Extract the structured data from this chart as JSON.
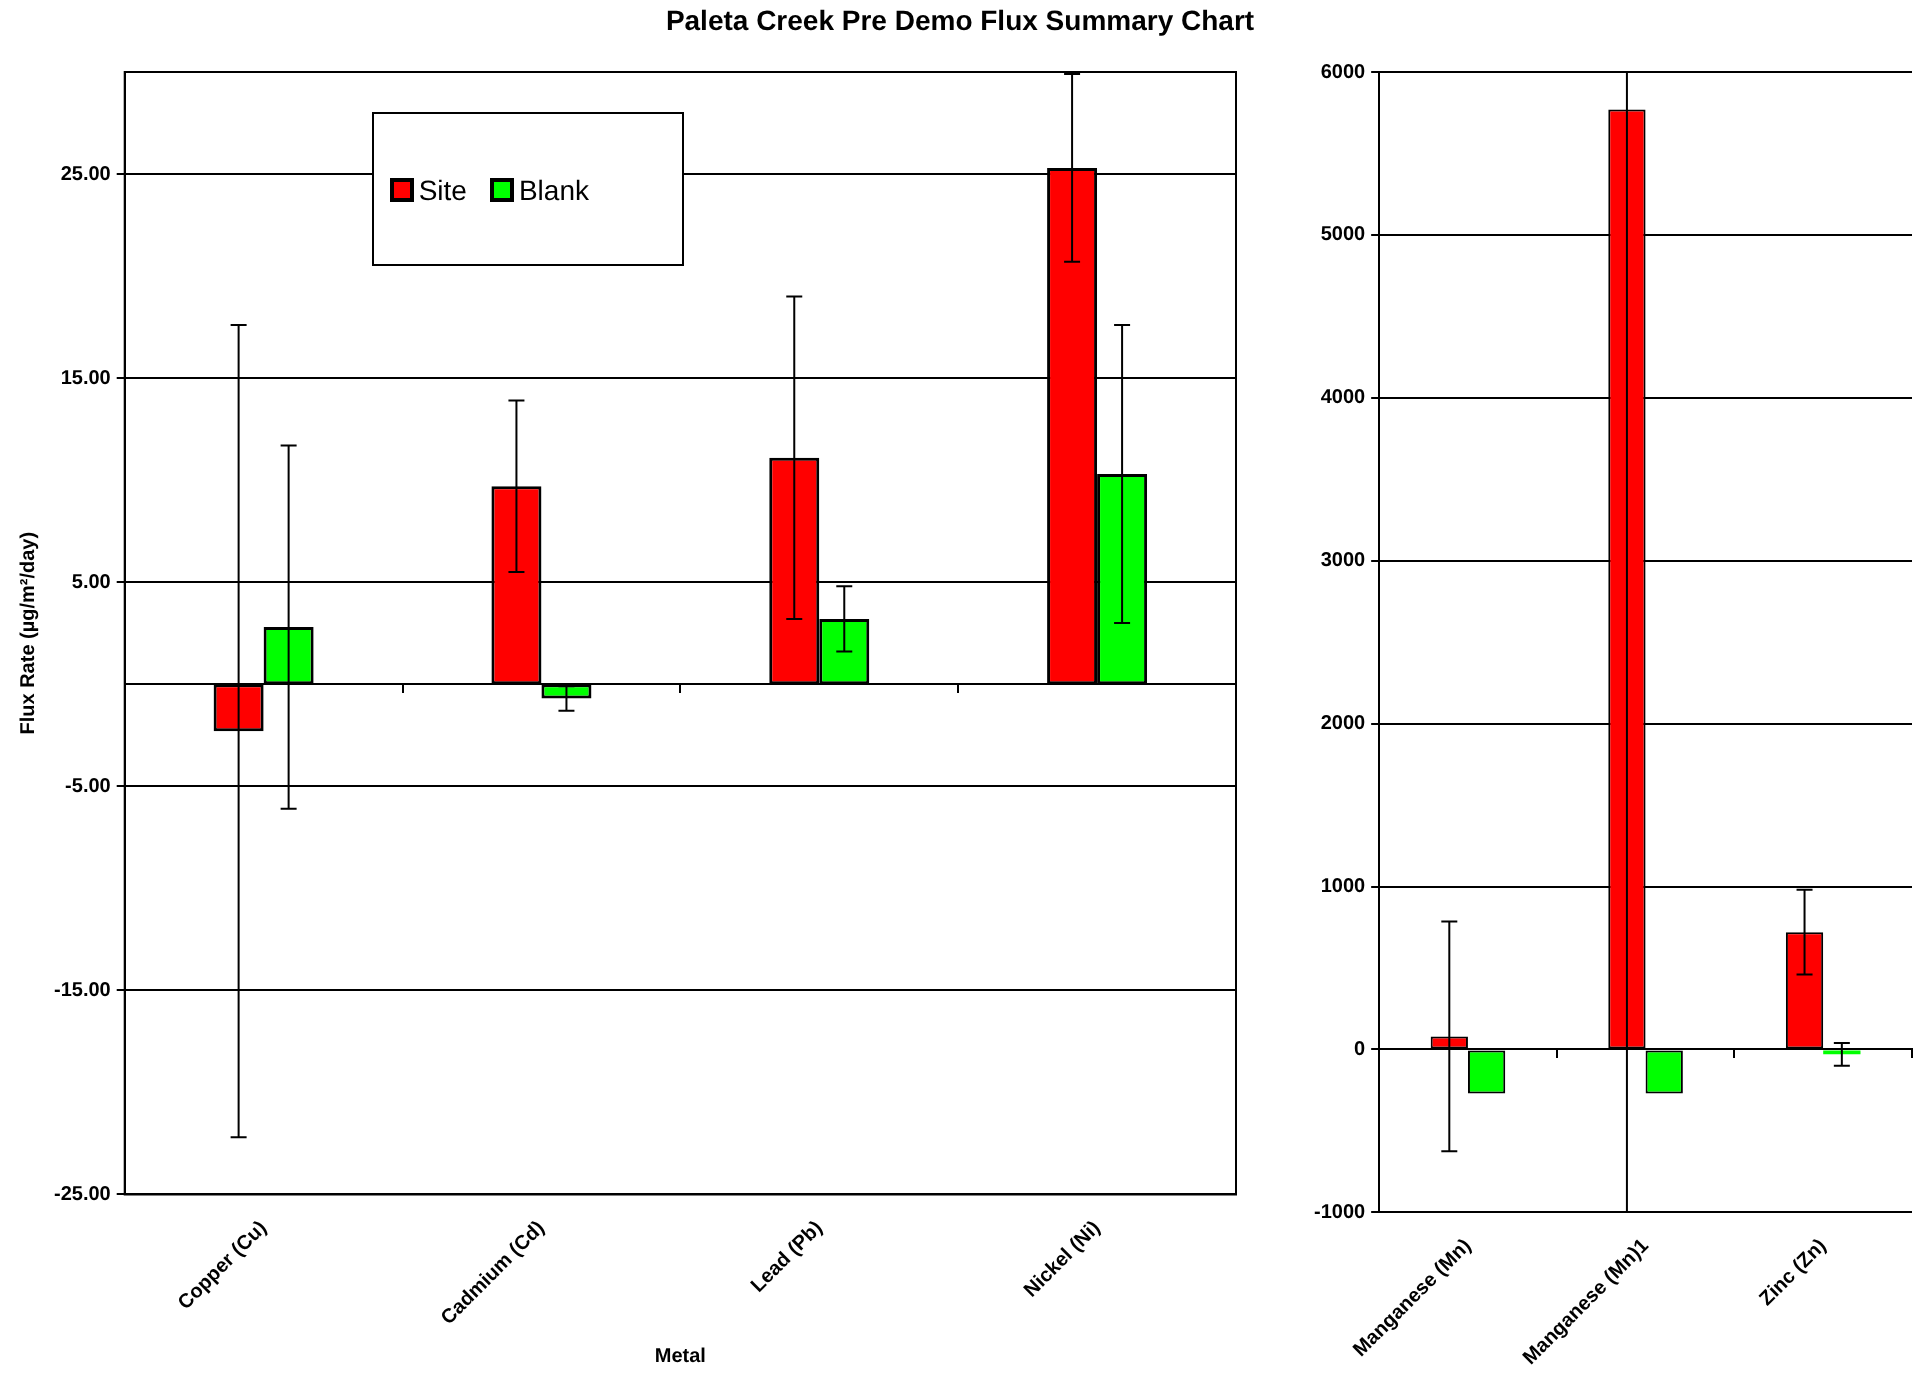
{
  "chart_data": [
    {
      "type": "bar",
      "title": "Paleta Creek Pre Demo Flux Summary Chart",
      "xlabel": "Metal",
      "ylabel": "Flux Rate (µg/m²/day)",
      "categories": [
        "Copper (Cu)",
        "Cadmium (Cd)",
        "Lead (Pb)",
        "Nickel (Ni)"
      ],
      "series": [
        {
          "name": "Site",
          "color": "#ff0000",
          "values": [
            -2.3,
            9.7,
            11.1,
            25.3
          ],
          "errors": [
            19.9,
            4.2,
            7.9,
            4.6
          ]
        },
        {
          "name": "Blank",
          "color": "#00ff00",
          "values": [
            2.8,
            -0.7,
            3.2,
            10.3
          ],
          "errors": [
            8.9,
            0.6,
            1.6,
            7.3
          ]
        }
      ],
      "ylim": [
        -25,
        30
      ],
      "yticks": [
        {
          "value": -25,
          "label": "-25.00"
        },
        {
          "value": -15,
          "label": "-15.00"
        },
        {
          "value": -5,
          "label": "-5.00"
        },
        {
          "value": 5,
          "label": "5.00"
        },
        {
          "value": 15,
          "label": "15.00"
        },
        {
          "value": 25,
          "label": "25.00"
        }
      ],
      "grid": "y",
      "legend": "top left"
    },
    {
      "type": "bar",
      "categories": [
        "Manganese (Mn)",
        "Manganese (Mn)1",
        "Zinc (Zn)"
      ],
      "series": [
        {
          "color": "#ff0000",
          "values": [
            80,
            5770,
            720
          ],
          "errors": [
            705,
            [
              -1000,
              6000
            ],
            260
          ]
        },
        {
          "color": "#00ff00",
          "values": [
            -270,
            -270,
            -30
          ],
          "errors": [
            null,
            null,
            70
          ]
        }
      ],
      "ylim": [
        -1000,
        6000
      ],
      "yticks": [
        -1000,
        0,
        1000,
        2000,
        3000,
        4000,
        5000,
        6000
      ],
      "grid": "y"
    }
  ]
}
